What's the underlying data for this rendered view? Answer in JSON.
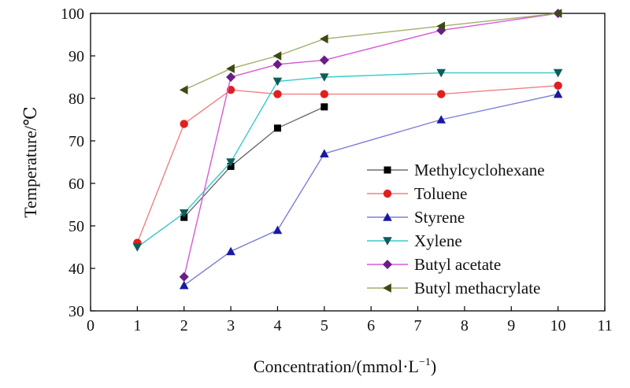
{
  "chart_data": {
    "type": "line",
    "title": "",
    "xlabel": "Concentration/(mmol·L",
    "xlabel_sup": "−1",
    "xlabel_end": ")",
    "ylabel": "Temperature/℃",
    "xlim": [
      0,
      11
    ],
    "ylim": [
      30,
      100
    ],
    "xticks": [
      0,
      1,
      2,
      3,
      4,
      5,
      6,
      7,
      8,
      9,
      10,
      11
    ],
    "yticks": [
      30,
      40,
      50,
      60,
      70,
      80,
      90,
      100
    ],
    "grid": false,
    "legend_position": "center-right",
    "series": [
      {
        "name": "Methylcyclohexane",
        "marker": "square",
        "marker_color": "#000000",
        "line_color": "#6e6e6e",
        "x": [
          2,
          3,
          4,
          5
        ],
        "y": [
          52,
          64,
          73,
          78
        ]
      },
      {
        "name": "Toluene",
        "marker": "circle",
        "marker_color": "#e02020",
        "line_color": "#f08080",
        "x": [
          1,
          2,
          3,
          4,
          5,
          7.5,
          10
        ],
        "y": [
          46,
          74,
          82,
          81,
          81,
          81,
          83
        ]
      },
      {
        "name": "Styrene",
        "marker": "triangle-up",
        "marker_color": "#1a1aa0",
        "line_color": "#7d7dd8",
        "x": [
          2,
          3,
          4,
          5,
          7.5,
          10
        ],
        "y": [
          36,
          44,
          49,
          67,
          75,
          81
        ]
      },
      {
        "name": "Xylene",
        "marker": "triangle-down",
        "marker_color": "#0f5c5c",
        "line_color": "#3cc8c8",
        "x": [
          1,
          2,
          3,
          4,
          5,
          7.5,
          10
        ],
        "y": [
          45,
          53,
          65,
          84,
          85,
          86,
          86
        ]
      },
      {
        "name": "Butyl acetate",
        "marker": "diamond",
        "marker_color": "#6a1d86",
        "line_color": "#d65ad6",
        "x": [
          2,
          3,
          4,
          5,
          7.5,
          10
        ],
        "y": [
          38,
          85,
          88,
          89,
          96,
          100
        ]
      },
      {
        "name": "Butyl methacrylate",
        "marker": "triangle-left",
        "marker_color": "#3b4a12",
        "line_color": "#a6ad6c",
        "x": [
          2,
          3,
          4,
          5,
          7.5,
          10
        ],
        "y": [
          82,
          87,
          90,
          94,
          97,
          100
        ]
      }
    ]
  }
}
